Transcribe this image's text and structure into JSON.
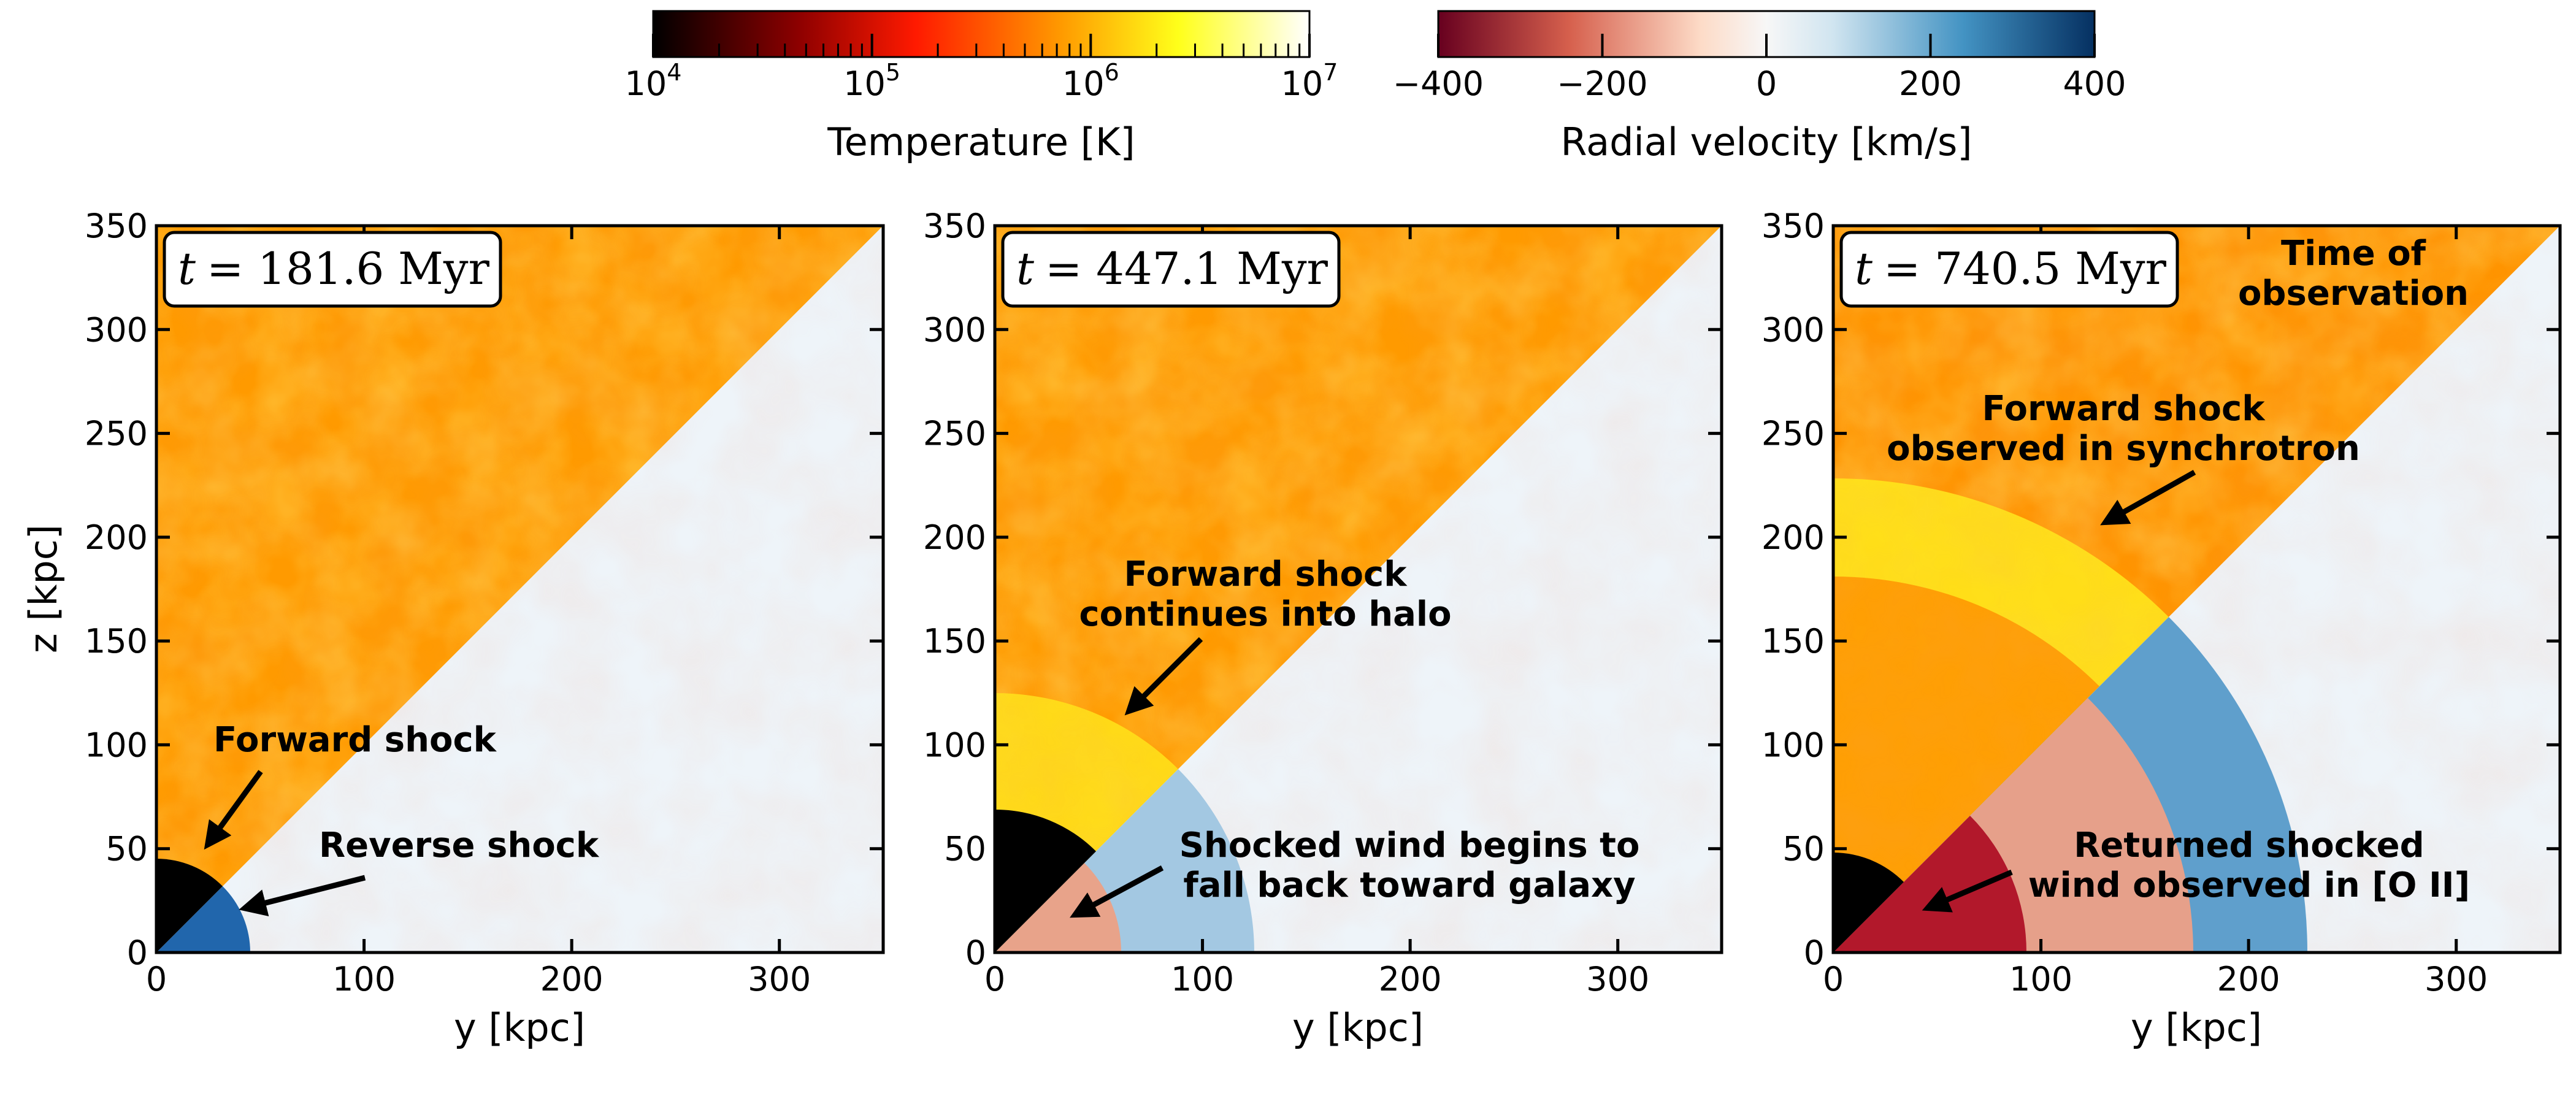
{
  "chart_data": {
    "type": "heatmap",
    "colorbars": [
      {
        "label": "Temperature [K]",
        "scale": "log",
        "range": [
          10000,
          10000000
        ],
        "ticks": [
          {
            "base": "10",
            "exp": "4"
          },
          {
            "base": "10",
            "exp": "5"
          },
          {
            "base": "10",
            "exp": "6"
          },
          {
            "base": "10",
            "exp": "7"
          }
        ],
        "colors": [
          "#000000",
          "#8c0000",
          "#ff1a00",
          "#ff9900",
          "#ffff1a",
          "#ffffff"
        ]
      },
      {
        "label": "Radial velocity [km/s]",
        "scale": "linear",
        "range": [
          -400,
          400
        ],
        "ticks": [
          "−400",
          "−200",
          "0",
          "200",
          "400"
        ],
        "colors": [
          "#67001f",
          "#d6604d",
          "#fddbc7",
          "#f7f7f7",
          "#d1e5f0",
          "#4393c3",
          "#053061"
        ]
      }
    ],
    "panels": [
      {
        "time_label": "t = 181.6 Myr",
        "shock_radius_kpc": 45,
        "annotations": [
          "Forward shock",
          "Reverse shock"
        ]
      },
      {
        "time_label": "t = 447.1 Myr",
        "shock_radius_kpc": 125,
        "annotations": [
          "Forward shock continues into halo",
          "Shocked wind begins to fall back toward galaxy"
        ]
      },
      {
        "time_label": "t = 740.5 Myr",
        "shock_radius_kpc": 230,
        "annotations": [
          "Time of observation",
          "Forward shock observed in synchrotron",
          "Returned shocked wind observed in [O II]"
        ]
      }
    ],
    "xlabel": "y [kpc]",
    "ylabel": "z [kpc]",
    "xlim": [
      0,
      350
    ],
    "ylim": [
      0,
      350
    ],
    "x_ticks": [
      "0",
      "100",
      "200",
      "300"
    ],
    "y_ticks": [
      "0",
      "50",
      "100",
      "150",
      "200",
      "250",
      "300",
      "350"
    ]
  },
  "annotation_lines": {
    "p1_fwd": "Forward shock",
    "p1_rev": "Reverse shock",
    "p2_fwd_1": "Forward shock",
    "p2_fwd_2": "continues into halo",
    "p2_fall_1": "Shocked wind begins to",
    "p2_fall_2": "fall back toward galaxy",
    "p3_obs_1": "Time of",
    "p3_obs_2": "observation",
    "p3_sync_1": "Forward shock",
    "p3_sync_2": "observed in synchrotron",
    "p3_oii_1": "Returned shocked",
    "p3_oii_2": "wind observed in [O II]"
  },
  "time_labels": {
    "p1": "= 181.6 Myr",
    "p2": "= 447.1 Myr",
    "p3": "= 740.5 Myr",
    "t": "t"
  }
}
